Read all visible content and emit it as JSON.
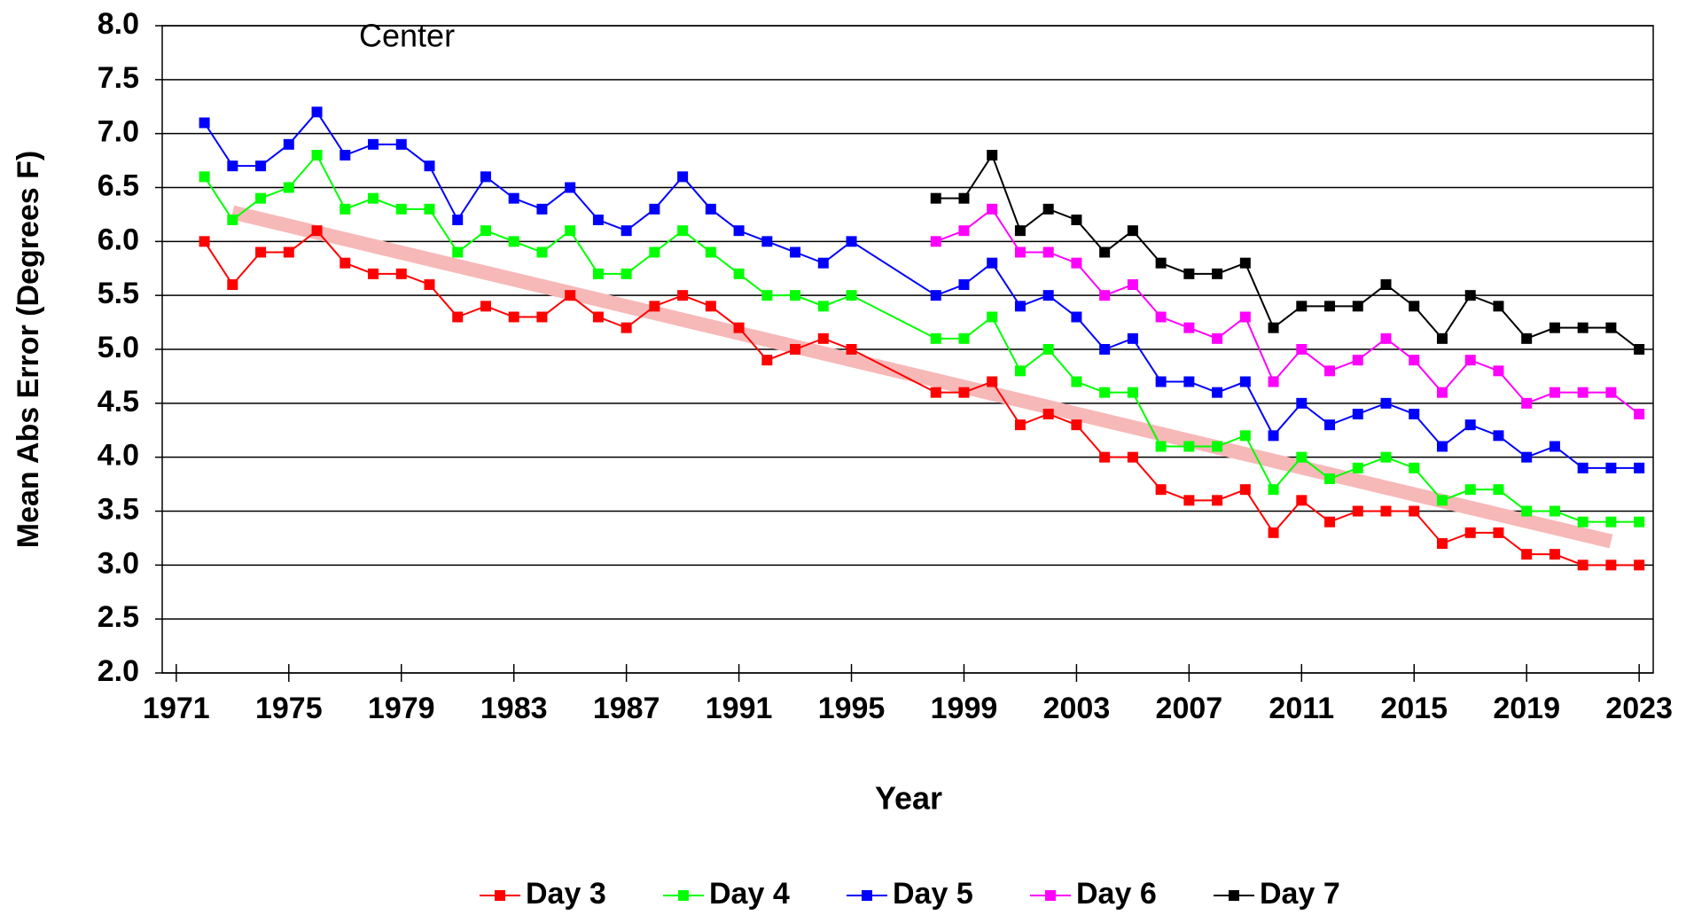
{
  "chart_data": {
    "type": "line",
    "annotation": "Center",
    "xlabel": "Year",
    "ylabel": "Mean Abs Error (Degrees F)",
    "x": [
      1972,
      1973,
      1974,
      1975,
      1976,
      1977,
      1978,
      1979,
      1980,
      1981,
      1982,
      1983,
      1984,
      1985,
      1986,
      1987,
      1988,
      1989,
      1990,
      1991,
      1992,
      1993,
      1994,
      1995,
      1998,
      1999,
      2000,
      2001,
      2002,
      2003,
      2004,
      2005,
      2006,
      2007,
      2008,
      2009,
      2010,
      2011,
      2012,
      2013,
      2014,
      2015,
      2016,
      2017,
      2018,
      2019,
      2020,
      2021,
      2022,
      2023
    ],
    "series": [
      {
        "name": "Day 3",
        "color": "#ff0000",
        "values": [
          6.0,
          5.6,
          5.9,
          5.9,
          6.1,
          5.8,
          5.7,
          5.7,
          5.6,
          5.3,
          5.4,
          5.3,
          5.3,
          5.5,
          5.3,
          5.2,
          5.4,
          5.5,
          5.4,
          5.2,
          4.9,
          5.0,
          5.1,
          5.0,
          4.6,
          4.6,
          4.7,
          4.3,
          4.4,
          4.3,
          4.0,
          4.0,
          3.7,
          3.6,
          3.6,
          3.7,
          3.3,
          3.6,
          3.4,
          3.5,
          3.5,
          3.5,
          3.2,
          3.3,
          3.3,
          3.1,
          3.1,
          3.0,
          3.0,
          3.0
        ]
      },
      {
        "name": "Day 4",
        "color": "#00ff00",
        "values": [
          6.6,
          6.2,
          6.4,
          6.5,
          6.8,
          6.3,
          6.4,
          6.3,
          6.3,
          5.9,
          6.1,
          6.0,
          5.9,
          6.1,
          5.7,
          5.7,
          5.9,
          6.1,
          5.9,
          5.7,
          5.5,
          5.5,
          5.4,
          5.5,
          5.1,
          5.1,
          5.3,
          4.8,
          5.0,
          4.7,
          4.6,
          4.6,
          4.1,
          4.1,
          4.1,
          4.2,
          3.7,
          4.0,
          3.8,
          3.9,
          4.0,
          3.9,
          3.6,
          3.7,
          3.7,
          3.5,
          3.5,
          3.4,
          3.4,
          3.4
        ]
      },
      {
        "name": "Day 5",
        "color": "#0000ff",
        "values": [
          7.1,
          6.7,
          6.7,
          6.9,
          7.2,
          6.8,
          6.9,
          6.9,
          6.7,
          6.2,
          6.6,
          6.4,
          6.3,
          6.5,
          6.2,
          6.1,
          6.3,
          6.6,
          6.3,
          6.1,
          6.0,
          5.9,
          5.8,
          6.0,
          5.5,
          5.6,
          5.8,
          5.4,
          5.5,
          5.3,
          5.0,
          5.1,
          4.7,
          4.7,
          4.6,
          4.7,
          4.2,
          4.5,
          4.3,
          4.4,
          4.5,
          4.4,
          4.1,
          4.3,
          4.2,
          4.0,
          4.1,
          3.9,
          3.9,
          3.9
        ]
      },
      {
        "name": "Day 6",
        "color": "#ff00ff",
        "values": [
          null,
          null,
          null,
          null,
          null,
          null,
          null,
          null,
          null,
          null,
          null,
          null,
          null,
          null,
          null,
          null,
          null,
          null,
          null,
          null,
          null,
          null,
          null,
          null,
          6.0,
          6.1,
          6.3,
          5.9,
          5.9,
          5.8,
          5.5,
          5.6,
          5.3,
          5.2,
          5.1,
          5.3,
          4.7,
          5.0,
          4.8,
          4.9,
          5.1,
          4.9,
          4.6,
          4.9,
          4.8,
          4.5,
          4.6,
          4.6,
          4.6,
          4.4
        ]
      },
      {
        "name": "Day 7",
        "color": "#000000",
        "values": [
          null,
          null,
          null,
          null,
          null,
          null,
          null,
          null,
          null,
          null,
          null,
          null,
          null,
          null,
          null,
          null,
          null,
          null,
          null,
          null,
          null,
          null,
          null,
          null,
          6.4,
          6.4,
          6.8,
          6.1,
          6.3,
          6.2,
          5.9,
          6.1,
          5.8,
          5.7,
          5.7,
          5.8,
          5.2,
          5.4,
          5.4,
          5.4,
          5.6,
          5.4,
          5.1,
          5.5,
          5.4,
          5.1,
          5.2,
          5.2,
          5.2,
          5.0
        ]
      }
    ],
    "trend_line": {
      "x": [
        1973,
        2022
      ],
      "values": [
        6.27,
        3.22
      ],
      "color": "#f7b8b8"
    },
    "xlim": [
      1970.5,
      2023.5
    ],
    "xticks": [
      1971,
      1975,
      1979,
      1983,
      1987,
      1991,
      1995,
      1999,
      2003,
      2007,
      2011,
      2015,
      2019,
      2023
    ],
    "ylim": [
      2,
      8
    ],
    "yticks": [
      {
        "value": 2,
        "label": "2.0"
      },
      {
        "value": 2.5,
        "label": "2.5"
      },
      {
        "value": 3,
        "label": "3.0"
      },
      {
        "value": 3.5,
        "label": "3.5"
      },
      {
        "value": 4,
        "label": "4.0"
      },
      {
        "value": 4.5,
        "label": "4.5"
      },
      {
        "value": 5,
        "label": "5.0"
      },
      {
        "value": 5.5,
        "label": "5.5"
      },
      {
        "value": 6,
        "label": "6.0"
      },
      {
        "value": 6.5,
        "label": "6.5"
      },
      {
        "value": 7,
        "label": "7.0"
      },
      {
        "value": 7.5,
        "label": "7.5"
      },
      {
        "value": 8,
        "label": "8.0"
      }
    ],
    "grid": true,
    "legend": "bottom"
  }
}
